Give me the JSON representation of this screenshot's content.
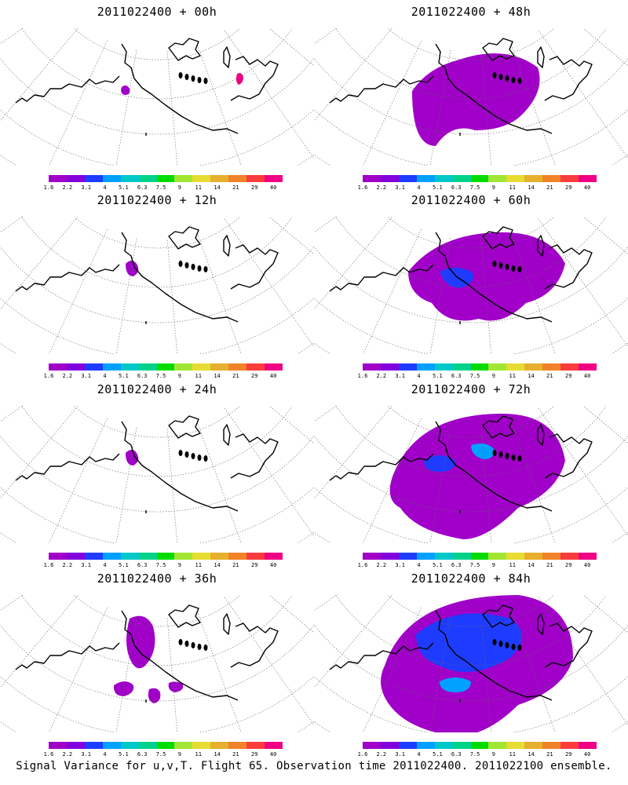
{
  "panels": [
    {
      "title": "2011022400 + 00h",
      "level": 0
    },
    {
      "title": "2011022400 + 48h",
      "level": 3
    },
    {
      "title": "2011022400 + 12h",
      "level": 1
    },
    {
      "title": "2011022400 + 60h",
      "level": 4
    },
    {
      "title": "2011022400 + 24h",
      "level": 1
    },
    {
      "title": "2011022400 + 72h",
      "level": 5
    },
    {
      "title": "2011022400 + 36h",
      "level": 2
    },
    {
      "title": "2011022400 + 84h",
      "level": 6
    }
  ],
  "colorbar": {
    "labels": [
      "1.6",
      "2.2",
      "3.1",
      "4",
      "5.1",
      "6.3",
      "7.5",
      "9",
      "11",
      "14",
      "21",
      "29",
      "40"
    ],
    "colors": [
      "#a000c8",
      "#8200dc",
      "#1e3cff",
      "#00a0ff",
      "#00c8c8",
      "#00d28c",
      "#00dc00",
      "#a0e632",
      "#e6dc32",
      "#e6af2d",
      "#f08228",
      "#fa3c3c",
      "#f00082"
    ]
  },
  "caption": "Signal Variance for u,v,T. Flight 65. Observation time 2011022400. 2011022100 ensemble."
}
